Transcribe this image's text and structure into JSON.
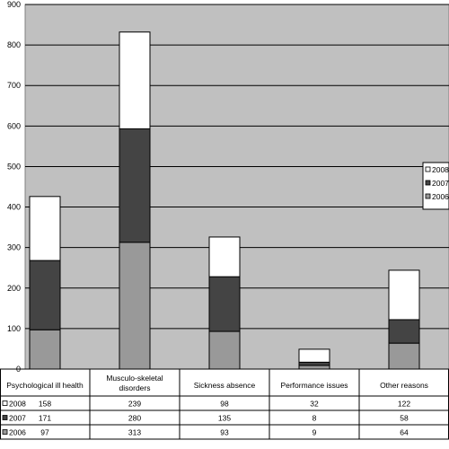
{
  "chart_data": {
    "type": "bar",
    "stacked": true,
    "title": "",
    "xlabel": "",
    "ylabel": "",
    "ylim": [
      0,
      900
    ],
    "yticks": [
      0,
      100,
      200,
      300,
      400,
      500,
      600,
      700,
      800,
      900
    ],
    "grid": true,
    "legend_position": "right",
    "categories": [
      "Psychological ill health",
      "Musculo-skeletal disorders",
      "Sickness absence",
      "Performance issues",
      "Other reasons"
    ],
    "series": [
      {
        "name": "2006",
        "values": [
          97,
          313,
          93,
          9,
          64
        ],
        "color": "#999999"
      },
      {
        "name": "2007",
        "values": [
          171,
          280,
          135,
          8,
          58
        ],
        "color": "#444444"
      },
      {
        "name": "2008",
        "values": [
          158,
          239,
          98,
          32,
          122
        ],
        "color": "#ffffff"
      }
    ],
    "table_rows": [
      "2008",
      "2007",
      "2006"
    ]
  }
}
